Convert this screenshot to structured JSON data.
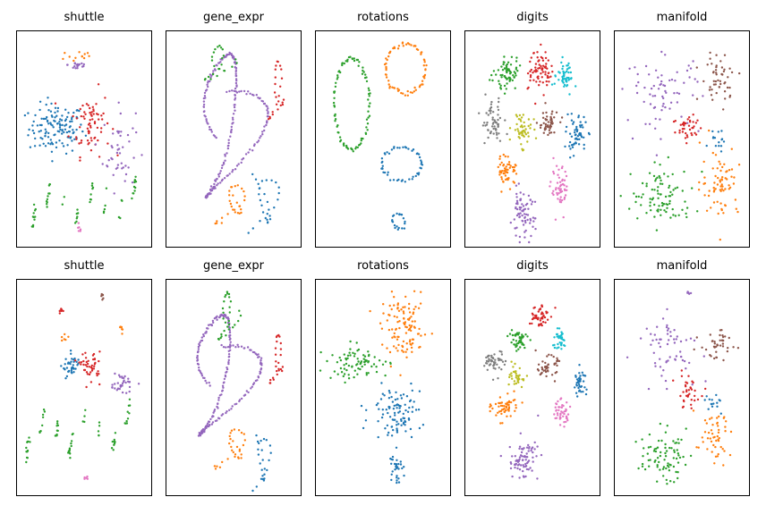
{
  "figure": {
    "rows": 2,
    "cols": 5
  },
  "palette": {
    "blue": "#1f77b4",
    "orange": "#ff7f0e",
    "green": "#2ca02c",
    "red": "#d62728",
    "purple": "#9467bd",
    "brown": "#8c564b",
    "pink": "#e377c2",
    "gray": "#7f7f7f",
    "olive": "#bcbd22",
    "cyan": "#17becf"
  },
  "panels": [
    {
      "row": 0,
      "col": 0,
      "title": "shuttle"
    },
    {
      "row": 0,
      "col": 1,
      "title": "gene_expr"
    },
    {
      "row": 0,
      "col": 2,
      "title": "rotations"
    },
    {
      "row": 0,
      "col": 3,
      "title": "digits"
    },
    {
      "row": 0,
      "col": 4,
      "title": "manifold"
    },
    {
      "row": 1,
      "col": 0,
      "title": "shuttle"
    },
    {
      "row": 1,
      "col": 1,
      "title": "gene_expr"
    },
    {
      "row": 1,
      "col": 2,
      "title": "rotations"
    },
    {
      "row": 1,
      "col": 3,
      "title": "digits"
    },
    {
      "row": 1,
      "col": 4,
      "title": "manifold"
    }
  ],
  "chart_data": {
    "type": "scatter",
    "axes_visible": false,
    "grid": false,
    "legend": "none",
    "panels": [
      {
        "title": "shuttle",
        "clusters": [
          {
            "color": "blue",
            "cx": 0.28,
            "cy": 0.55,
            "rx": 0.22,
            "ry": 0.12,
            "n": 130,
            "shape": "blob"
          },
          {
            "color": "red",
            "cx": 0.55,
            "cy": 0.58,
            "rx": 0.16,
            "ry": 0.16,
            "n": 70,
            "shape": "blob"
          },
          {
            "color": "purple",
            "cx": 0.78,
            "cy": 0.45,
            "rx": 0.13,
            "ry": 0.2,
            "n": 45,
            "shape": "blob"
          },
          {
            "color": "green",
            "cx": 0.5,
            "cy": 0.2,
            "rx": 0.4,
            "ry": 0.08,
            "n": 60,
            "shape": "streaks"
          },
          {
            "color": "orange",
            "cx": 0.45,
            "cy": 0.9,
            "rx": 0.15,
            "ry": 0.04,
            "n": 12,
            "shape": "blob"
          },
          {
            "color": "purple",
            "cx": 0.45,
            "cy": 0.86,
            "rx": 0.08,
            "ry": 0.03,
            "n": 18,
            "shape": "blob"
          },
          {
            "color": "pink",
            "cx": 0.46,
            "cy": 0.06,
            "rx": 0.02,
            "ry": 0.02,
            "n": 6,
            "shape": "blob"
          }
        ]
      },
      {
        "title": "gene_expr",
        "clusters": [
          {
            "color": "purple",
            "cx": 0.45,
            "cy": 0.55,
            "rx": 0.35,
            "ry": 0.3,
            "n": 220,
            "shape": "curve"
          },
          {
            "color": "green",
            "cx": 0.38,
            "cy": 0.87,
            "rx": 0.15,
            "ry": 0.07,
            "n": 25,
            "shape": "curve"
          },
          {
            "color": "red",
            "cx": 0.85,
            "cy": 0.75,
            "rx": 0.08,
            "ry": 0.12,
            "n": 25,
            "shape": "curve"
          },
          {
            "color": "orange",
            "cx": 0.5,
            "cy": 0.2,
            "rx": 0.15,
            "ry": 0.08,
            "n": 30,
            "shape": "curve"
          },
          {
            "color": "blue",
            "cx": 0.75,
            "cy": 0.2,
            "rx": 0.15,
            "ry": 0.12,
            "n": 30,
            "shape": "curve"
          }
        ]
      },
      {
        "title": "rotations",
        "clusters": [
          {
            "color": "green",
            "cx": 0.25,
            "cy": 0.67,
            "rx": 0.14,
            "ry": 0.22,
            "n": 90,
            "shape": "ring"
          },
          {
            "color": "orange",
            "cx": 0.68,
            "cy": 0.84,
            "rx": 0.16,
            "ry": 0.12,
            "n": 70,
            "shape": "ring"
          },
          {
            "color": "blue",
            "cx": 0.65,
            "cy": 0.38,
            "rx": 0.16,
            "ry": 0.08,
            "n": 50,
            "shape": "ring"
          },
          {
            "color": "blue",
            "cx": 0.62,
            "cy": 0.1,
            "rx": 0.05,
            "ry": 0.04,
            "n": 20,
            "shape": "ring"
          }
        ]
      },
      {
        "title": "digits",
        "clusters": [
          {
            "color": "green",
            "cx": 0.3,
            "cy": 0.82,
            "rx": 0.09,
            "ry": 0.09,
            "n": 70,
            "shape": "blob"
          },
          {
            "color": "red",
            "cx": 0.56,
            "cy": 0.84,
            "rx": 0.09,
            "ry": 0.09,
            "n": 70,
            "shape": "blob"
          },
          {
            "color": "cyan",
            "cx": 0.76,
            "cy": 0.8,
            "rx": 0.07,
            "ry": 0.07,
            "n": 50,
            "shape": "blob"
          },
          {
            "color": "gray",
            "cx": 0.18,
            "cy": 0.58,
            "rx": 0.09,
            "ry": 0.1,
            "n": 60,
            "shape": "blob"
          },
          {
            "color": "olive",
            "cx": 0.42,
            "cy": 0.55,
            "rx": 0.08,
            "ry": 0.08,
            "n": 50,
            "shape": "blob"
          },
          {
            "color": "brown",
            "cx": 0.62,
            "cy": 0.57,
            "rx": 0.08,
            "ry": 0.07,
            "n": 50,
            "shape": "blob"
          },
          {
            "color": "blue",
            "cx": 0.85,
            "cy": 0.52,
            "rx": 0.08,
            "ry": 0.09,
            "n": 60,
            "shape": "blob"
          },
          {
            "color": "orange",
            "cx": 0.3,
            "cy": 0.35,
            "rx": 0.08,
            "ry": 0.07,
            "n": 55,
            "shape": "blob"
          },
          {
            "color": "pink",
            "cx": 0.72,
            "cy": 0.25,
            "rx": 0.07,
            "ry": 0.11,
            "n": 55,
            "shape": "blob"
          },
          {
            "color": "purple",
            "cx": 0.42,
            "cy": 0.13,
            "rx": 0.1,
            "ry": 0.11,
            "n": 75,
            "shape": "blob"
          }
        ]
      },
      {
        "title": "manifold",
        "clusters": [
          {
            "color": "purple",
            "cx": 0.35,
            "cy": 0.72,
            "rx": 0.3,
            "ry": 0.18,
            "n": 70,
            "shape": "blob"
          },
          {
            "color": "brown",
            "cx": 0.8,
            "cy": 0.8,
            "rx": 0.15,
            "ry": 0.12,
            "n": 50,
            "shape": "blob"
          },
          {
            "color": "red",
            "cx": 0.55,
            "cy": 0.55,
            "rx": 0.12,
            "ry": 0.08,
            "n": 40,
            "shape": "blob"
          },
          {
            "color": "blue",
            "cx": 0.8,
            "cy": 0.5,
            "rx": 0.08,
            "ry": 0.06,
            "n": 15,
            "shape": "blob"
          },
          {
            "color": "orange",
            "cx": 0.8,
            "cy": 0.3,
            "rx": 0.15,
            "ry": 0.17,
            "n": 70,
            "shape": "blob"
          },
          {
            "color": "green",
            "cx": 0.35,
            "cy": 0.22,
            "rx": 0.25,
            "ry": 0.14,
            "n": 90,
            "shape": "blob"
          }
        ]
      },
      {
        "title": "shuttle",
        "clusters": [
          {
            "color": "blue",
            "cx": 0.4,
            "cy": 0.6,
            "rx": 0.07,
            "ry": 0.06,
            "n": 40,
            "shape": "blob"
          },
          {
            "color": "red",
            "cx": 0.55,
            "cy": 0.6,
            "rx": 0.08,
            "ry": 0.07,
            "n": 45,
            "shape": "blob"
          },
          {
            "color": "purple",
            "cx": 0.8,
            "cy": 0.52,
            "rx": 0.1,
            "ry": 0.05,
            "n": 35,
            "shape": "blob"
          },
          {
            "color": "green",
            "cx": 0.45,
            "cy": 0.3,
            "rx": 0.4,
            "ry": 0.1,
            "n": 70,
            "shape": "streaks"
          },
          {
            "color": "orange",
            "cx": 0.35,
            "cy": 0.73,
            "rx": 0.04,
            "ry": 0.02,
            "n": 6,
            "shape": "blob"
          },
          {
            "color": "red",
            "cx": 0.32,
            "cy": 0.87,
            "rx": 0.03,
            "ry": 0.02,
            "n": 8,
            "shape": "blob"
          },
          {
            "color": "brown",
            "cx": 0.64,
            "cy": 0.94,
            "rx": 0.02,
            "ry": 0.02,
            "n": 6,
            "shape": "blob"
          },
          {
            "color": "orange",
            "cx": 0.8,
            "cy": 0.79,
            "rx": 0.02,
            "ry": 0.03,
            "n": 6,
            "shape": "blob"
          },
          {
            "color": "pink",
            "cx": 0.52,
            "cy": 0.06,
            "rx": 0.03,
            "ry": 0.01,
            "n": 5,
            "shape": "blob"
          }
        ]
      },
      {
        "title": "gene_expr",
        "clusters": [
          {
            "color": "purple",
            "cx": 0.4,
            "cy": 0.55,
            "rx": 0.35,
            "ry": 0.25,
            "n": 220,
            "shape": "curve"
          },
          {
            "color": "green",
            "cx": 0.45,
            "cy": 0.85,
            "rx": 0.1,
            "ry": 0.1,
            "n": 30,
            "shape": "curve"
          },
          {
            "color": "red",
            "cx": 0.85,
            "cy": 0.65,
            "rx": 0.07,
            "ry": 0.1,
            "n": 25,
            "shape": "curve"
          },
          {
            "color": "orange",
            "cx": 0.5,
            "cy": 0.22,
            "rx": 0.15,
            "ry": 0.08,
            "n": 30,
            "shape": "curve"
          },
          {
            "color": "blue",
            "cx": 0.73,
            "cy": 0.15,
            "rx": 0.08,
            "ry": 0.12,
            "n": 25,
            "shape": "curve"
          }
        ]
      },
      {
        "title": "rotations",
        "clusters": [
          {
            "color": "orange",
            "cx": 0.67,
            "cy": 0.78,
            "rx": 0.18,
            "ry": 0.15,
            "n": 110,
            "shape": "blob"
          },
          {
            "color": "green",
            "cx": 0.3,
            "cy": 0.62,
            "rx": 0.25,
            "ry": 0.08,
            "n": 80,
            "shape": "blob"
          },
          {
            "color": "blue",
            "cx": 0.6,
            "cy": 0.38,
            "rx": 0.2,
            "ry": 0.12,
            "n": 100,
            "shape": "blob"
          },
          {
            "color": "blue",
            "cx": 0.6,
            "cy": 0.12,
            "rx": 0.05,
            "ry": 0.08,
            "n": 30,
            "shape": "blob"
          }
        ]
      },
      {
        "title": "digits",
        "clusters": [
          {
            "color": "red",
            "cx": 0.55,
            "cy": 0.85,
            "rx": 0.08,
            "ry": 0.06,
            "n": 50,
            "shape": "blob"
          },
          {
            "color": "green",
            "cx": 0.38,
            "cy": 0.73,
            "rx": 0.08,
            "ry": 0.06,
            "n": 45,
            "shape": "blob"
          },
          {
            "color": "cyan",
            "cx": 0.72,
            "cy": 0.73,
            "rx": 0.06,
            "ry": 0.05,
            "n": 35,
            "shape": "blob"
          },
          {
            "color": "gray",
            "cx": 0.2,
            "cy": 0.62,
            "rx": 0.08,
            "ry": 0.06,
            "n": 50,
            "shape": "blob"
          },
          {
            "color": "olive",
            "cx": 0.38,
            "cy": 0.55,
            "rx": 0.06,
            "ry": 0.05,
            "n": 35,
            "shape": "blob"
          },
          {
            "color": "brown",
            "cx": 0.62,
            "cy": 0.6,
            "rx": 0.08,
            "ry": 0.05,
            "n": 45,
            "shape": "blob"
          },
          {
            "color": "blue",
            "cx": 0.88,
            "cy": 0.53,
            "rx": 0.05,
            "ry": 0.07,
            "n": 40,
            "shape": "blob"
          },
          {
            "color": "orange",
            "cx": 0.28,
            "cy": 0.4,
            "rx": 0.1,
            "ry": 0.06,
            "n": 55,
            "shape": "blob"
          },
          {
            "color": "pink",
            "cx": 0.72,
            "cy": 0.38,
            "rx": 0.08,
            "ry": 0.06,
            "n": 45,
            "shape": "blob"
          },
          {
            "color": "purple",
            "cx": 0.43,
            "cy": 0.15,
            "rx": 0.12,
            "ry": 0.1,
            "n": 80,
            "shape": "blob"
          }
        ]
      },
      {
        "title": "manifold",
        "clusters": [
          {
            "color": "purple",
            "cx": 0.4,
            "cy": 0.7,
            "rx": 0.25,
            "ry": 0.15,
            "n": 60,
            "shape": "blob"
          },
          {
            "color": "brown",
            "cx": 0.78,
            "cy": 0.7,
            "rx": 0.13,
            "ry": 0.08,
            "n": 40,
            "shape": "blob"
          },
          {
            "color": "red",
            "cx": 0.55,
            "cy": 0.48,
            "rx": 0.1,
            "ry": 0.08,
            "n": 35,
            "shape": "blob"
          },
          {
            "color": "blue",
            "cx": 0.75,
            "cy": 0.43,
            "rx": 0.08,
            "ry": 0.05,
            "n": 15,
            "shape": "blob"
          },
          {
            "color": "orange",
            "cx": 0.75,
            "cy": 0.25,
            "rx": 0.15,
            "ry": 0.12,
            "n": 50,
            "shape": "blob"
          },
          {
            "color": "green",
            "cx": 0.35,
            "cy": 0.17,
            "rx": 0.18,
            "ry": 0.12,
            "n": 80,
            "shape": "blob"
          },
          {
            "color": "purple",
            "cx": 0.55,
            "cy": 0.96,
            "rx": 0.02,
            "ry": 0.01,
            "n": 5,
            "shape": "blob"
          }
        ]
      }
    ]
  }
}
